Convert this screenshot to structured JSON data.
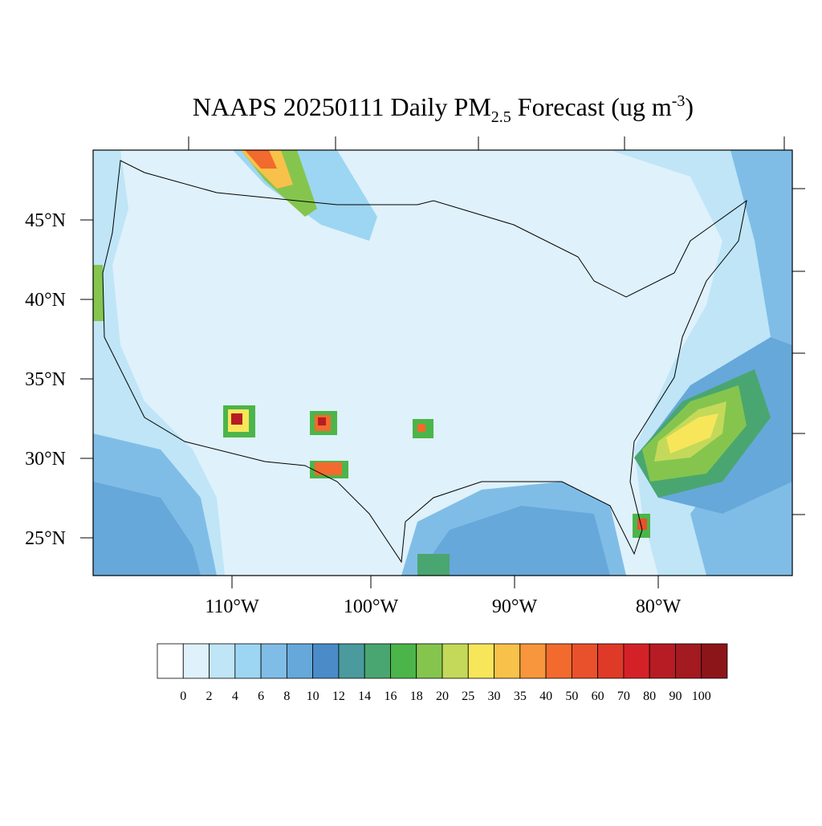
{
  "title": {
    "main": "NAAPS 20250111 Daily PM",
    "sub": "2.5",
    "rest": " Forecast (ug m",
    "sup": "-3",
    "end": ")"
  },
  "lat_labels": [
    "45°N",
    "40°N",
    "35°N",
    "30°N",
    "25°N"
  ],
  "lon_labels": [
    "110°W",
    "100°W",
    "90°W",
    "80°W"
  ],
  "colorbar": {
    "levels": [
      0,
      2,
      4,
      6,
      8,
      10,
      12,
      14,
      16,
      18,
      20,
      25,
      30,
      35,
      40,
      50,
      60,
      70,
      80,
      90,
      100
    ],
    "colors": [
      "#ffffff",
      "#dff1fb",
      "#bfe5f7",
      "#9dd6f2",
      "#80bde6",
      "#66a8da",
      "#4a8bc8",
      "#4a9a9e",
      "#4aa670",
      "#4cb54a",
      "#85c54e",
      "#c4d95a",
      "#f7e65a",
      "#f8c14a",
      "#f7963d",
      "#f26a2d",
      "#e9512c",
      "#df3a28",
      "#d42128",
      "#b71c24",
      "#a31a20",
      "#8c1519"
    ]
  }
}
